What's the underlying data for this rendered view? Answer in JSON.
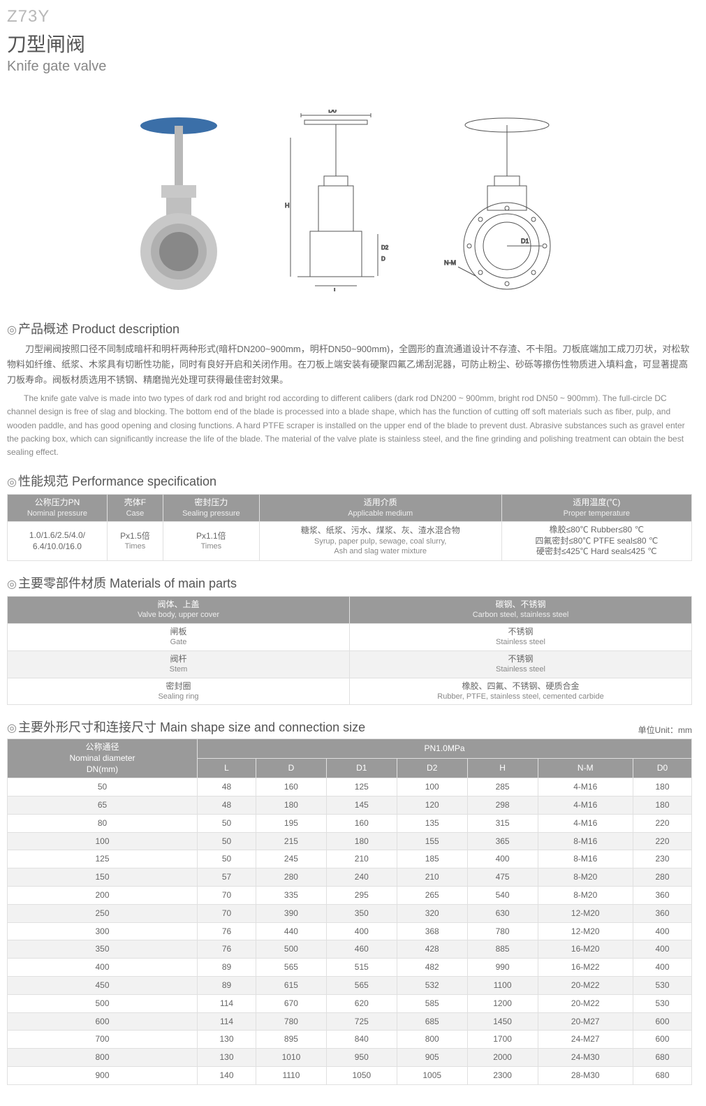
{
  "header": {
    "model": "Z73Y",
    "title_cn": "刀型闸阀",
    "title_en": "Knife gate valve"
  },
  "diagrams": {
    "labels": {
      "D0": "D0",
      "H": "H",
      "D2": "D2",
      "D": "D",
      "L": "L",
      "D1": "D1",
      "NM": "N-M"
    }
  },
  "sections": {
    "desc_title": "产品概述 Product description",
    "perf_title": "性能规范 Performance specification",
    "mat_title": "主要零部件材质 Materials of main parts",
    "size_title": "主要外形尺寸和连接尺寸 Main shape size and connection size"
  },
  "description": {
    "cn": "刀型闸阀按照口径不同制成暗杆和明杆两种形式(暗杆DN200~900mm，明杆DN50~900mm)，全圆形的直流通道设计不存渣、不卡阻。刀板底端加工成刀刃状，对松软物料如纤维、纸浆、木浆具有切断性功能，同时有良好开启和关闭作用。在刀板上端安装有硬聚四氟乙烯刮泥器，可防止粉尘、砂砾等擦伤性物质进入填料盒，可显著提高刀板寿命。阀板材质选用不锈钢、精磨抛光处理可获得最佳密封效果。",
    "en": "The knife gate valve is made into two types of dark rod and bright rod according to different calibers (dark rod DN200 ~ 900mm, bright rod DN50 ~ 900mm). The full-circle DC channel design is free of slag and blocking. The bottom end of the blade is processed into a blade shape, which has the function of cutting off soft materials such as fiber, pulp, and wooden paddle, and has good opening and closing functions. A hard PTFE scraper is installed on the upper end of the blade to prevent dust. Abrasive substances such as gravel enter the packing box, which can significantly increase the life of the blade. The material of the valve plate is stainless steel, and the fine grinding and polishing treatment can obtain the best sealing effect."
  },
  "perf": {
    "headers": {
      "pn_cn": "公称压力PN",
      "pn_en": "Nominal pressure",
      "case_cn": "壳体F",
      "case_en": "Case",
      "seal_cn": "密封压力",
      "seal_en": "Sealing pressure",
      "med_cn": "适用介质",
      "med_en": "Applicable medium",
      "temp_cn": "适用温度(℃)",
      "temp_en": "Proper temperature"
    },
    "row": {
      "pn": "1.0/1.6/2.5/4.0/\n6.4/10.0/16.0",
      "case_cn": "Px1.5倍",
      "case_en": "Times",
      "seal_cn": "Px1.1倍",
      "seal_en": "Times",
      "med_cn": "糖浆、纸浆、污水、煤浆、灰、渣水混合物",
      "med_en1": "Syrup, paper pulp, sewage, coal slurry,",
      "med_en2": "Ash and slag water mixture",
      "temp1": "橡胶≤80℃ Rubber≤80 ℃",
      "temp2": "四氟密封≤80℃ PTFE seal≤80 ℃",
      "temp3": "硬密封≤425℃ Hard seal≤425 ℃"
    }
  },
  "materials": {
    "rows": [
      {
        "part_cn": "阀体、上盖",
        "part_en": "Valve body, upper cover",
        "mat_cn": "碳钢、不锈钢",
        "mat_en": "Carbon steel, stainless steel",
        "head": true
      },
      {
        "part_cn": "闸板",
        "part_en": "Gate",
        "mat_cn": "不锈钢",
        "mat_en": "Stainless steel"
      },
      {
        "part_cn": "阀杆",
        "part_en": "Stem",
        "mat_cn": "不锈钢",
        "mat_en": "Stainless steel",
        "alt": true
      },
      {
        "part_cn": "密封圈",
        "part_en": "Sealing ring",
        "mat_cn": "橡胶、四氟、不锈钢、硬质合金",
        "mat_en": "Rubber, PTFE, stainless steel, cemented carbide"
      }
    ]
  },
  "size": {
    "unit": "单位Unit：mm",
    "dn_header_cn": "公称通径",
    "dn_header_en": "Nominal diameter\nDN(mm)",
    "pn_header": "PN1.0MPa",
    "cols": [
      "L",
      "D",
      "D1",
      "D2",
      "H",
      "N-M",
      "D0"
    ],
    "rows": [
      [
        "50",
        "48",
        "160",
        "125",
        "100",
        "285",
        "4-M16",
        "180"
      ],
      [
        "65",
        "48",
        "180",
        "145",
        "120",
        "298",
        "4-M16",
        "180"
      ],
      [
        "80",
        "50",
        "195",
        "160",
        "135",
        "315",
        "4-M16",
        "220"
      ],
      [
        "100",
        "50",
        "215",
        "180",
        "155",
        "365",
        "8-M16",
        "220"
      ],
      [
        "125",
        "50",
        "245",
        "210",
        "185",
        "400",
        "8-M16",
        "230"
      ],
      [
        "150",
        "57",
        "280",
        "240",
        "210",
        "475",
        "8-M20",
        "280"
      ],
      [
        "200",
        "70",
        "335",
        "295",
        "265",
        "540",
        "8-M20",
        "360"
      ],
      [
        "250",
        "70",
        "390",
        "350",
        "320",
        "630",
        "12-M20",
        "360"
      ],
      [
        "300",
        "76",
        "440",
        "400",
        "368",
        "780",
        "12-M20",
        "400"
      ],
      [
        "350",
        "76",
        "500",
        "460",
        "428",
        "885",
        "16-M20",
        "400"
      ],
      [
        "400",
        "89",
        "565",
        "515",
        "482",
        "990",
        "16-M22",
        "400"
      ],
      [
        "450",
        "89",
        "615",
        "565",
        "532",
        "1100",
        "20-M22",
        "530"
      ],
      [
        "500",
        "114",
        "670",
        "620",
        "585",
        "1200",
        "20-M22",
        "530"
      ],
      [
        "600",
        "114",
        "780",
        "725",
        "685",
        "1450",
        "20-M27",
        "600"
      ],
      [
        "700",
        "130",
        "895",
        "840",
        "800",
        "1700",
        "24-M27",
        "600"
      ],
      [
        "800",
        "130",
        "1010",
        "950",
        "905",
        "2000",
        "24-M30",
        "680"
      ],
      [
        "900",
        "140",
        "1110",
        "1050",
        "1005",
        "2300",
        "28-M30",
        "680"
      ]
    ]
  },
  "colors": {
    "header_bg": "#9a9a9a",
    "alt_bg": "#f2f2f2",
    "border": "#e0e0e0",
    "text": "#555555",
    "muted": "#888888"
  }
}
